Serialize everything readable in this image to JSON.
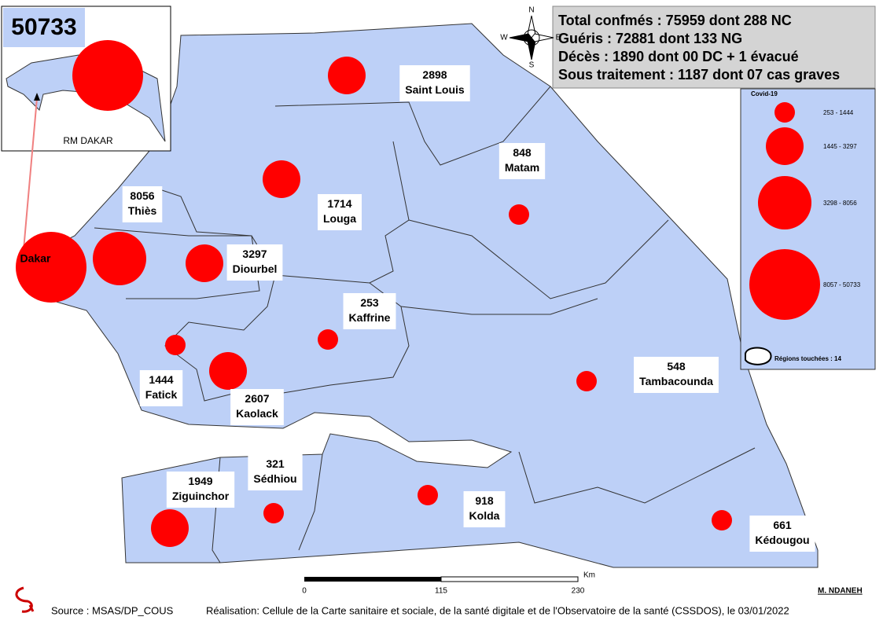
{
  "title": "50733",
  "inset": {
    "label": "RM DAKAR"
  },
  "dakar": {
    "name": "Dakar",
    "cases": 50733
  },
  "stats": [
    "Total confmés : 75959 dont 288 NC",
    "Guéris : 72881 dont 133 NG",
    "Décès : 1890 dont 00 DC + 1 évacué",
    "Sous traitement : 1187 dont 07 cas graves"
  ],
  "compass": {
    "n": "N",
    "s": "S",
    "e": "E",
    "w": "W"
  },
  "legend": {
    "title": "Covid-19",
    "classes": [
      {
        "label": "253 - 1444",
        "min": 253,
        "max": 1444
      },
      {
        "label": "1445 - 3297",
        "min": 1445,
        "max": 3297
      },
      {
        "label": "3298 - 8056",
        "min": 3298,
        "max": 8056
      },
      {
        "label": "8057 - 50733",
        "min": 8057,
        "max": 50733
      }
    ],
    "regions_note": "Régions touchées : 14"
  },
  "regions": [
    {
      "name": "Saint Louis",
      "cases": 2898
    },
    {
      "name": "Matam",
      "cases": 848
    },
    {
      "name": "Louga",
      "cases": 1714
    },
    {
      "name": "Thiès",
      "cases": 8056
    },
    {
      "name": "Diourbel",
      "cases": 3297
    },
    {
      "name": "Kaffrine",
      "cases": 253
    },
    {
      "name": "Fatick",
      "cases": 1444
    },
    {
      "name": "Kaolack",
      "cases": 2607
    },
    {
      "name": "Tambacounda",
      "cases": 548
    },
    {
      "name": "Ziguinchor",
      "cases": 1949
    },
    {
      "name": "Sédhiou",
      "cases": 321
    },
    {
      "name": "Kolda",
      "cases": 918
    },
    {
      "name": "Kédougou",
      "cases": 661
    }
  ],
  "scale": {
    "unit": "Km",
    "ticks": [
      "0",
      "115",
      "230"
    ]
  },
  "author": "M. NDANEH",
  "source": "Source : MSAS/DP_COUS",
  "credit": "Réalisation: Cellule de la Carte sanitaire et sociale, de la santé digitale et de l'Observatoire de la santé (CSSDOS), le 03/01/2022"
}
